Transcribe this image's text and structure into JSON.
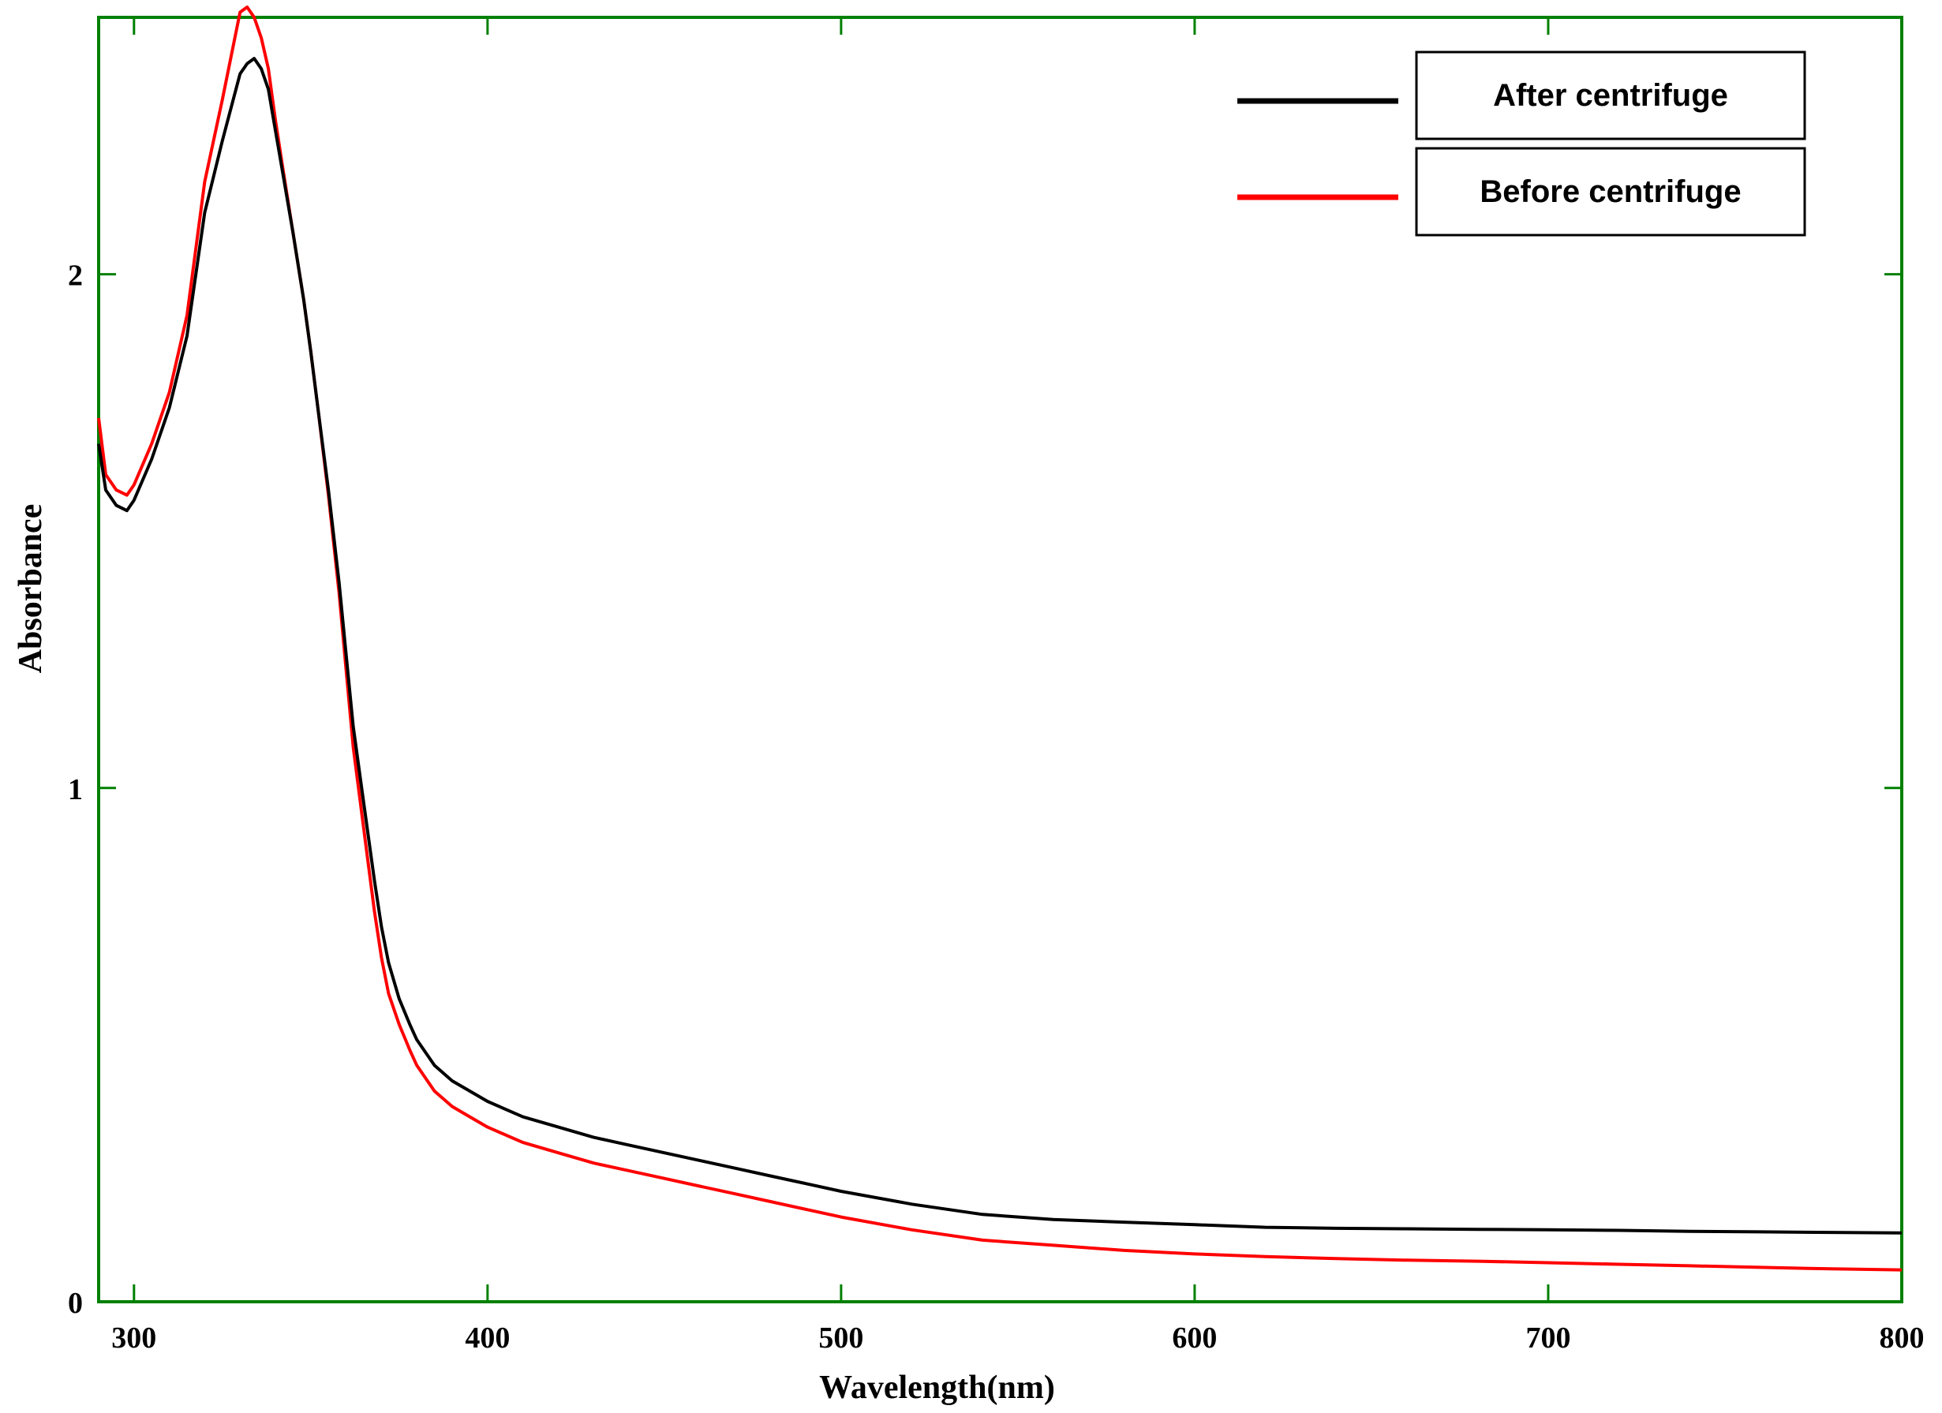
{
  "chart_data": {
    "type": "line",
    "xlabel": "Wavelength(nm)",
    "ylabel": "Absorbance",
    "xlim": [
      290,
      800
    ],
    "ylim": [
      0,
      2.5
    ],
    "xticks": [
      300,
      400,
      500,
      600,
      700,
      800
    ],
    "yticks": [
      0,
      1,
      2
    ],
    "grid": false,
    "legend_position": "top-right",
    "frame_color": "#008000",
    "series": [
      {
        "name": "After centrifuge",
        "color": "#000000",
        "x": [
          290,
          292,
          295,
          298,
          300,
          305,
          310,
          315,
          320,
          325,
          330,
          332,
          334,
          336,
          338,
          340,
          342,
          345,
          348,
          350,
          352,
          355,
          358,
          360,
          362,
          365,
          368,
          370,
          372,
          375,
          378,
          380,
          385,
          390,
          395,
          400,
          410,
          420,
          430,
          440,
          450,
          460,
          470,
          480,
          490,
          500,
          520,
          540,
          560,
          580,
          600,
          620,
          640,
          660,
          680,
          700,
          720,
          740,
          760,
          780,
          800
        ],
        "y": [
          1.67,
          1.58,
          1.55,
          1.54,
          1.56,
          1.64,
          1.74,
          1.88,
          2.12,
          2.26,
          2.39,
          2.41,
          2.42,
          2.4,
          2.36,
          2.28,
          2.2,
          2.08,
          1.95,
          1.85,
          1.74,
          1.58,
          1.4,
          1.26,
          1.12,
          0.97,
          0.82,
          0.73,
          0.66,
          0.59,
          0.54,
          0.51,
          0.46,
          0.43,
          0.41,
          0.39,
          0.36,
          0.34,
          0.32,
          0.305,
          0.29,
          0.275,
          0.26,
          0.245,
          0.23,
          0.215,
          0.19,
          0.17,
          0.16,
          0.155,
          0.15,
          0.145,
          0.143,
          0.142,
          0.141,
          0.14,
          0.139,
          0.137,
          0.136,
          0.135,
          0.134
        ]
      },
      {
        "name": "Before centrifuge",
        "color": "#ff0000",
        "x": [
          290,
          292,
          295,
          298,
          300,
          305,
          310,
          315,
          320,
          325,
          330,
          332,
          334,
          336,
          338,
          340,
          342,
          345,
          348,
          350,
          352,
          355,
          358,
          360,
          362,
          365,
          368,
          370,
          372,
          375,
          378,
          380,
          385,
          390,
          395,
          400,
          410,
          420,
          430,
          440,
          450,
          460,
          470,
          480,
          490,
          500,
          520,
          540,
          560,
          580,
          600,
          620,
          640,
          660,
          680,
          700,
          720,
          740,
          760,
          780,
          800
        ],
        "y": [
          1.72,
          1.61,
          1.58,
          1.57,
          1.59,
          1.67,
          1.77,
          1.92,
          2.18,
          2.34,
          2.51,
          2.52,
          2.5,
          2.46,
          2.4,
          2.3,
          2.21,
          2.08,
          1.95,
          1.85,
          1.74,
          1.57,
          1.38,
          1.23,
          1.08,
          0.92,
          0.76,
          0.67,
          0.6,
          0.54,
          0.49,
          0.46,
          0.41,
          0.38,
          0.36,
          0.34,
          0.31,
          0.29,
          0.27,
          0.255,
          0.24,
          0.225,
          0.21,
          0.195,
          0.18,
          0.165,
          0.14,
          0.12,
          0.11,
          0.1,
          0.093,
          0.088,
          0.084,
          0.081,
          0.079,
          0.076,
          0.073,
          0.07,
          0.067,
          0.064,
          0.062
        ]
      }
    ]
  }
}
